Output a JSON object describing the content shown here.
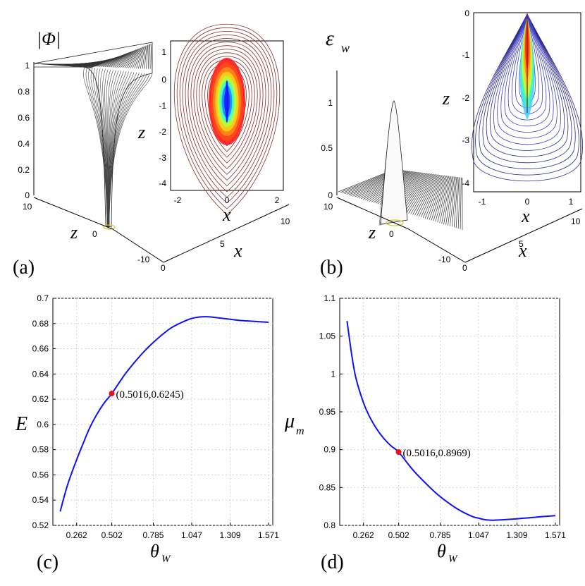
{
  "colors": {
    "curve": "#1010ff",
    "marker": "#ee1111",
    "contour_outer": "#8b2a2a",
    "contour_blue": "#4040c8"
  },
  "panel_a": {
    "label": "(a)",
    "zlabel": "|Φ|",
    "axis_z_label": "z",
    "axis_x_label": "x",
    "vert_ticks": [
      "0",
      "0.2",
      "0.4",
      "0.6",
      "0.8",
      "1"
    ],
    "z_ticks": [
      "10",
      "0",
      "-10"
    ],
    "x_ticks": [
      "0",
      "5",
      "10"
    ],
    "inset": {
      "xlabel": "x",
      "ylabel": "z",
      "x_ticks": [
        "-2",
        "0",
        "2"
      ],
      "y_ticks": [
        "1",
        "0",
        "-1",
        "-2",
        "-3",
        "-4"
      ]
    }
  },
  "panel_b": {
    "label": "(b)",
    "zlabel": "ε",
    "zlabel_sub": "w",
    "axis_z_label": "z",
    "axis_x_label": "x",
    "vert_ticks": [
      "0",
      "0.5",
      "1"
    ],
    "z_ticks": [
      "10",
      "0",
      "-10"
    ],
    "x_ticks": [
      "0",
      "5",
      "10"
    ],
    "inset": {
      "xlabel": "x",
      "ylabel": "z",
      "x_ticks": [
        "-1",
        "0",
        "1"
      ],
      "y_ticks": [
        "0",
        "-1",
        "-2",
        "-3",
        "-4"
      ]
    }
  },
  "chart_data": [
    {
      "type": "line",
      "panel": "(c)",
      "xlabel": "θ",
      "xlabel_sub": "W",
      "ylabel": "E",
      "xlim": [
        0.1,
        1.6
      ],
      "ylim": [
        0.52,
        0.7
      ],
      "x_ticks": [
        0.262,
        0.502,
        0.785,
        1.047,
        1.309,
        1.571
      ],
      "x_tick_labels": [
        "0.262",
        "0.502",
        "0.785",
        "1.047",
        "1.309",
        "1.571"
      ],
      "y_ticks": [
        0.52,
        0.54,
        0.56,
        0.58,
        0.6,
        0.62,
        0.64,
        0.66,
        0.68,
        0.7
      ],
      "y_tick_labels": [
        "0.52",
        "0.54",
        "0.56",
        "0.58",
        "0.6",
        "0.62",
        "0.64",
        "0.66",
        "0.68",
        "0.7"
      ],
      "series": [
        {
          "name": "E",
          "x": [
            0.15,
            0.2,
            0.262,
            0.3,
            0.35,
            0.4,
            0.45,
            0.502,
            0.6,
            0.7,
            0.785,
            0.9,
            1.0,
            1.047,
            1.1,
            1.15,
            1.2,
            1.3,
            1.4,
            1.5,
            1.571
          ],
          "y": [
            0.531,
            0.552,
            0.572,
            0.583,
            0.597,
            0.608,
            0.617,
            0.6245,
            0.641,
            0.655,
            0.665,
            0.676,
            0.682,
            0.684,
            0.6852,
            0.6854,
            0.6849,
            0.6835,
            0.6822,
            0.6815,
            0.681
          ]
        }
      ],
      "marker": {
        "x": 0.5016,
        "y": 0.6245,
        "label": "(0.5016,0.6245)"
      }
    },
    {
      "type": "line",
      "panel": "(d)",
      "xlabel": "θ",
      "xlabel_sub": "W",
      "ylabel": "μ",
      "ylabel_sub": "m",
      "xlim": [
        0.1,
        1.6
      ],
      "ylim": [
        0.8,
        1.1
      ],
      "x_ticks": [
        0.262,
        0.502,
        0.785,
        1.047,
        1.309,
        1.571
      ],
      "x_tick_labels": [
        "0.262",
        "0.502",
        "0.785",
        "1.047",
        "1.309",
        "1.571"
      ],
      "y_ticks": [
        0.8,
        0.85,
        0.9,
        0.95,
        1.0,
        1.05,
        1.1
      ],
      "y_tick_labels": [
        "0.8",
        "0.85",
        "0.9",
        "0.95",
        "1",
        "1.05",
        "1.1"
      ],
      "series": [
        {
          "name": "μm",
          "x": [
            0.15,
            0.18,
            0.21,
            0.262,
            0.3,
            0.35,
            0.4,
            0.45,
            0.502,
            0.6,
            0.7,
            0.785,
            0.9,
            1.0,
            1.047,
            1.1,
            1.15,
            1.2,
            1.3,
            1.4,
            1.5,
            1.571
          ],
          "y": [
            1.07,
            1.028,
            0.995,
            0.962,
            0.945,
            0.928,
            0.915,
            0.905,
            0.8969,
            0.873,
            0.853,
            0.838,
            0.822,
            0.812,
            0.8095,
            0.8072,
            0.8068,
            0.8072,
            0.8085,
            0.8102,
            0.8118,
            0.8128
          ]
        }
      ],
      "marker": {
        "x": 0.5016,
        "y": 0.8969,
        "label": "(0.5016,0.8969)"
      }
    }
  ]
}
